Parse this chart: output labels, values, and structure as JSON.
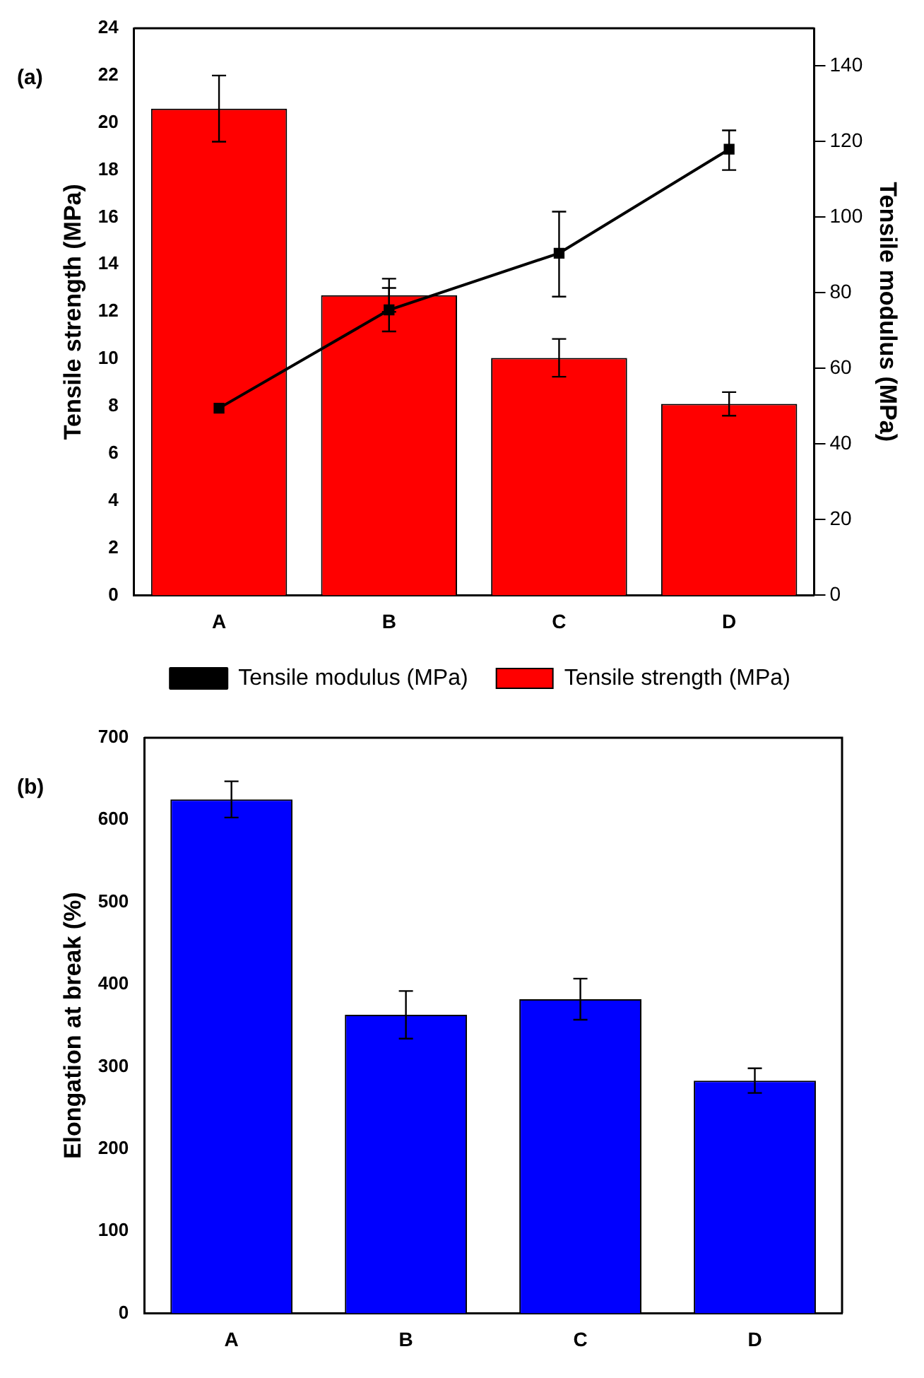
{
  "chart_data": [
    {
      "type": "bar",
      "categories": [
        "A",
        "B",
        "C",
        "D"
      ],
      "ylabel": "Tensile strength (MPa)",
      "y2label": "Tensile modulus (MPa)",
      "annotations": [
        "(a)"
      ],
      "ylim": [
        0,
        24
      ],
      "yticks": [
        0,
        2,
        4,
        6,
        8,
        10,
        12,
        14,
        16,
        18,
        20,
        22,
        24
      ],
      "y2lim": [
        0,
        150
      ],
      "y2ticks": [
        0,
        20,
        40,
        60,
        80,
        100,
        120,
        140
      ],
      "legend": "bottom",
      "grid": false,
      "series": [
        {
          "name": "Tensile strength (MPa)",
          "color": "#ff0000",
          "values": [
            20.6,
            12.7,
            10.05,
            8.1
          ],
          "errors": [
            1.4,
            0.7,
            0.8,
            0.5
          ]
        },
        {
          "name": "Tensile modulus (MPa)",
          "type": "line",
          "axis": "y2",
          "color": "#000000",
          "marker": "square",
          "values": [
            49.5,
            75.5,
            90.5,
            118
          ],
          "errors": [
            null,
            [
              69.8,
              81.3
            ],
            [
              79,
              101.5
            ],
            [
              112.5,
              123
            ]
          ]
        }
      ]
    },
    {
      "type": "bar",
      "categories": [
        "A",
        "B",
        "C",
        "D"
      ],
      "ylabel": "Elongation at break (%)",
      "annotations": [
        "(b)"
      ],
      "ylim": [
        0,
        700
      ],
      "yticks": [
        0,
        100,
        200,
        300,
        400,
        500,
        600,
        700
      ],
      "legend": false,
      "grid": false,
      "series": [
        {
          "color": "#0000ff",
          "values": [
            625,
            363,
            382,
            283
          ],
          "errors": [
            22,
            29,
            25,
            15
          ]
        }
      ]
    }
  ]
}
